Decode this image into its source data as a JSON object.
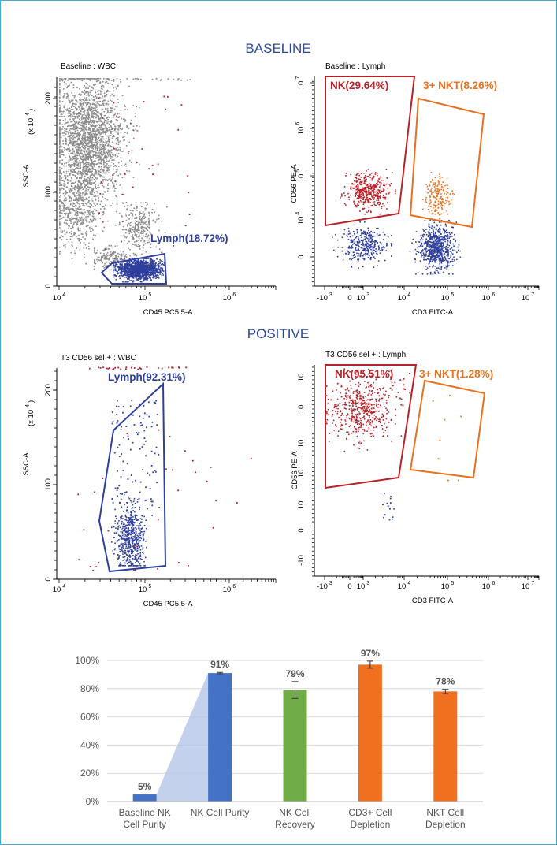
{
  "sections": {
    "baseline_title": "BASELINE",
    "positive_title": "POSITIVE"
  },
  "colors": {
    "title_blue": "#2b4a9b",
    "gray_events": "#8a8a8a",
    "lymph_blue": "#2f3f9c",
    "nk_red": "#b52228",
    "nkt_orange": "#e8711f",
    "bar_blue": "#4472c4",
    "bar_green": "#70ad47",
    "bar_orange": "#f0701f",
    "bridge": "#b4c6e7"
  },
  "plots": {
    "baseline_wbc": {
      "title": "Baseline : WBC",
      "xlabel": "CD45 PC5.5-A",
      "ylabel": "SSC-A",
      "yunit_base": "(x 10",
      "yunit_exp": "4",
      "yunit_close": ")",
      "xticks": [
        {
          "base": "10",
          "exp": "4"
        },
        {
          "base": "10",
          "exp": "5"
        },
        {
          "base": "10",
          "exp": "6"
        }
      ],
      "yticks": [
        "0",
        "100",
        "200"
      ],
      "gate_label": "Lymph(18.72%)"
    },
    "baseline_lymph": {
      "title": "Baseline : Lymph",
      "xlabel": "CD3 FITC-A",
      "ylabel": "CD56 PE-A",
      "xticks": [
        {
          "base": "-10",
          "exp": "3"
        },
        {
          "base": "0",
          "exp": ""
        },
        {
          "base": "10",
          "exp": "3"
        },
        {
          "base": "10",
          "exp": "4"
        },
        {
          "base": "10",
          "exp": "5"
        },
        {
          "base": "10",
          "exp": "6"
        },
        {
          "base": "10",
          "exp": "7"
        }
      ],
      "yticks": [
        {
          "base": "0",
          "exp": ""
        },
        {
          "base": "10",
          "exp": "4"
        },
        {
          "base": "10",
          "exp": "5"
        },
        {
          "base": "10",
          "exp": "6"
        },
        {
          "base": "10",
          "exp": "7"
        }
      ],
      "gate_nk": "NK(29.64%)",
      "gate_nkt": "3+ NKT(8.26%)"
    },
    "positive_wbc": {
      "title": "T3 CD56 sel + : WBC",
      "xlabel": "CD45 PC5.5-A",
      "ylabel": "SSC-A",
      "yunit_base": "(x 10",
      "yunit_exp": "4",
      "yunit_close": ")",
      "xticks": [
        {
          "base": "10",
          "exp": "4"
        },
        {
          "base": "10",
          "exp": "5"
        },
        {
          "base": "10",
          "exp": "6"
        }
      ],
      "yticks": [
        "0",
        "100",
        "200"
      ],
      "gate_label": "Lymph(92.31%)"
    },
    "positive_lymph": {
      "title": "T3 CD56 sel + : Lymph",
      "xlabel": "CD3 FITC-A",
      "ylabel": "CD56 PE-A",
      "xticks": [
        {
          "base": "-10",
          "exp": "3"
        },
        {
          "base": "0",
          "exp": ""
        },
        {
          "base": "10",
          "exp": "3"
        },
        {
          "base": "10",
          "exp": "4"
        },
        {
          "base": "10",
          "exp": "5"
        },
        {
          "base": "10",
          "exp": "6"
        },
        {
          "base": "10",
          "exp": "7"
        }
      ],
      "yticks": [
        {
          "base": "-10",
          "exp": ""
        },
        {
          "base": "0",
          "exp": ""
        },
        {
          "base": "10",
          "exp": ""
        },
        {
          "base": "10",
          "exp": ""
        },
        {
          "base": "10",
          "exp": ""
        },
        {
          "base": "10",
          "exp": ""
        },
        {
          "base": "10",
          "exp": ""
        }
      ],
      "gate_nk": "NK(95.51%)",
      "gate_nkt": "3+ NKT(1.28%)"
    }
  },
  "chart_data": {
    "type": "bar",
    "categories": [
      [
        "Baseline NK",
        "Cell Purity"
      ],
      [
        "NK Cell Purity"
      ],
      [
        "NK Cell",
        "Recovery"
      ],
      [
        "CD3+ Cell",
        "Depletion"
      ],
      [
        "NKT Cell",
        "Depletion"
      ]
    ],
    "values": [
      5,
      91,
      79,
      97,
      78
    ],
    "value_labels": [
      "5%",
      "91%",
      "79%",
      "97%",
      "78%"
    ],
    "errors": [
      0,
      0.5,
      6,
      2.5,
      1.5
    ],
    "bar_colors": [
      "#4472c4",
      "#4472c4",
      "#70ad47",
      "#f0701f",
      "#f0701f"
    ],
    "yticks": [
      "0%",
      "20%",
      "40%",
      "60%",
      "80%",
      "100%"
    ],
    "ylim": [
      0,
      100
    ],
    "grid": true,
    "legend": false
  }
}
